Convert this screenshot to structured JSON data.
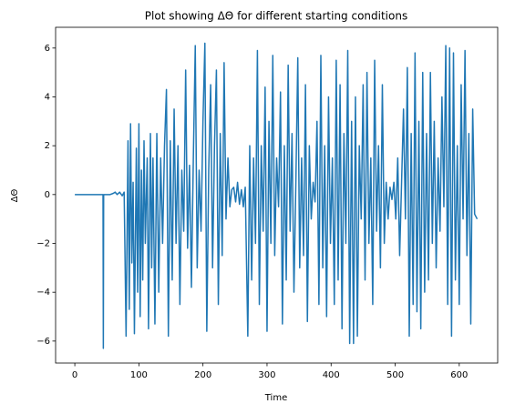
{
  "chart_data": {
    "type": "line",
    "title": "Plot showing ΔΘ for different starting conditions",
    "xlabel": "Time",
    "ylabel": "ΔΘ",
    "color": "#1f77b4",
    "xlim": [
      -30,
      660
    ],
    "xticks": [
      0,
      100,
      200,
      300,
      400,
      500,
      600
    ],
    "ylim": [
      -6.9,
      6.85
    ],
    "yticks": [
      {
        "value": -6,
        "label": "−6"
      },
      {
        "value": -4,
        "label": "−4"
      },
      {
        "value": -2,
        "label": "−2"
      },
      0,
      2,
      4,
      6
    ],
    "x": [
      0,
      44,
      44.5,
      45,
      55,
      60,
      63,
      66,
      70,
      74,
      77,
      80,
      83,
      85,
      87,
      89,
      91,
      93,
      96,
      98,
      100,
      102,
      104,
      106,
      108,
      110,
      113,
      115,
      118,
      120,
      122,
      125,
      128,
      131,
      134,
      137,
      140,
      143,
      146,
      149,
      152,
      155,
      158,
      161,
      164,
      167,
      170,
      173,
      176,
      179,
      182,
      185,
      188,
      191,
      194,
      197,
      200,
      203,
      206,
      209,
      212,
      215,
      218,
      221,
      224,
      227,
      230,
      233,
      236,
      239,
      242,
      245,
      248,
      251,
      254,
      257,
      260,
      263,
      266,
      270,
      273,
      276,
      279,
      282,
      285,
      288,
      291,
      294,
      297,
      300,
      303,
      306,
      309,
      312,
      315,
      318,
      321,
      324,
      327,
      330,
      333,
      336,
      339,
      342,
      345,
      348,
      351,
      354,
      357,
      360,
      363,
      366,
      369,
      372,
      375,
      378,
      381,
      384,
      387,
      390,
      393,
      396,
      399,
      402,
      405,
      408,
      411,
      414,
      417,
      420,
      423,
      426,
      429,
      432,
      435,
      438,
      441,
      444,
      447,
      450,
      453,
      456,
      459,
      462,
      465,
      468,
      471,
      474,
      477,
      480,
      483,
      486,
      489,
      492,
      495,
      498,
      501,
      504,
      507,
      510,
      513,
      516,
      519,
      522,
      525,
      528,
      531,
      534,
      537,
      540,
      543,
      546,
      549,
      552,
      555,
      558,
      561,
      564,
      567,
      570,
      573,
      576,
      579,
      582,
      585,
      588,
      591,
      594,
      597,
      600,
      603,
      606,
      609,
      612,
      615,
      618,
      621,
      624,
      628
    ],
    "values": [
      0,
      0,
      -6.3,
      0,
      0,
      0.05,
      0.1,
      0,
      0.1,
      -0.05,
      0.1,
      -5.8,
      2.2,
      -4.7,
      2.9,
      -2.8,
      0.5,
      -5.7,
      1.9,
      -4.0,
      2.9,
      -5.0,
      1.0,
      -3.5,
      2.2,
      -2.0,
      1.5,
      -5.5,
      2.5,
      -3.0,
      1.5,
      -5.3,
      2.5,
      -4.0,
      1.5,
      -2.0,
      2.0,
      4.3,
      -5.8,
      2.2,
      -3.5,
      3.5,
      -2.0,
      2.0,
      -4.5,
      1.0,
      -1.5,
      5.1,
      -2.2,
      1.2,
      -3.8,
      1.5,
      6.1,
      -3.0,
      1.0,
      -1.5,
      3.0,
      6.2,
      -5.6,
      1.0,
      4.5,
      -3.0,
      2.0,
      5.1,
      -4.5,
      2.5,
      -2.5,
      5.4,
      -1.0,
      1.5,
      -0.5,
      0.2,
      0.3,
      -0.3,
      0.5,
      -0.4,
      0.2,
      -0.5,
      0.3,
      -5.8,
      2.0,
      -3.5,
      1.5,
      -2.0,
      5.9,
      -4.5,
      2.0,
      -1.5,
      4.4,
      -5.6,
      3.0,
      -2.0,
      5.7,
      -2.5,
      1.5,
      -0.5,
      4.2,
      -5.3,
      2.0,
      -3.5,
      5.3,
      -1.5,
      2.5,
      -4.0,
      0.5,
      5.6,
      -3.0,
      1.5,
      -2.5,
      4.5,
      -5.2,
      2.0,
      -1.0,
      0.5,
      -0.3,
      3.0,
      -4.5,
      5.7,
      -3.0,
      2.0,
      -5.0,
      4.0,
      -2.0,
      1.5,
      -4.5,
      5.5,
      -3.5,
      4.5,
      -5.5,
      2.5,
      -2.0,
      5.9,
      -6.1,
      3.0,
      -6.1,
      4.0,
      -5.8,
      2.0,
      -1.0,
      4.5,
      -3.5,
      5.0,
      -2.0,
      1.5,
      -4.5,
      5.5,
      -1.5,
      2.0,
      -3.0,
      4.5,
      -2.0,
      0.5,
      -1.0,
      0.3,
      -0.2,
      0.5,
      -1.0,
      1.5,
      -2.5,
      0.5,
      3.5,
      -1.0,
      5.2,
      -5.8,
      2.5,
      -4.5,
      5.8,
      -4.8,
      3.0,
      -5.5,
      5.0,
      -4.0,
      2.5,
      -3.5,
      5.0,
      -2.0,
      3.0,
      -3.0,
      1.5,
      -1.5,
      4.0,
      -0.5,
      6.1,
      -4.5,
      6.0,
      -5.8,
      5.8,
      -3.5,
      2.0,
      -4.5,
      4.5,
      -1.0,
      5.9,
      -2.5,
      2.5,
      -5.3,
      3.5,
      -0.8,
      -1.0
    ]
  }
}
